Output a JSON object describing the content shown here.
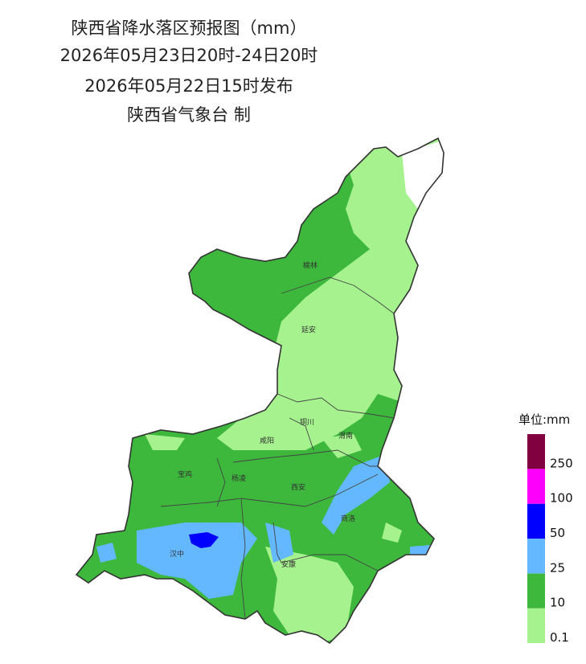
{
  "header": {
    "title": "陕西省降水落区预报图（mm）",
    "period": "2026年05月23日20时-24日20时",
    "issued": "2026年05月22日15时发布",
    "issuer": "陕西省气象台 制"
  },
  "cities": [
    "榆林",
    "延安",
    "铜川",
    "渭南",
    "咸阳",
    "宝鸡",
    "杨凌",
    "西安",
    "商洛",
    "汉中",
    "安康"
  ],
  "legend": {
    "title": "单位:mm",
    "ticks": [
      0.1,
      10,
      25,
      50,
      100,
      250
    ],
    "colors": [
      "#a6f28f",
      "#3db83d",
      "#63b8ff",
      "#0000fe",
      "#fd00fc",
      "#800040"
    ]
  }
}
